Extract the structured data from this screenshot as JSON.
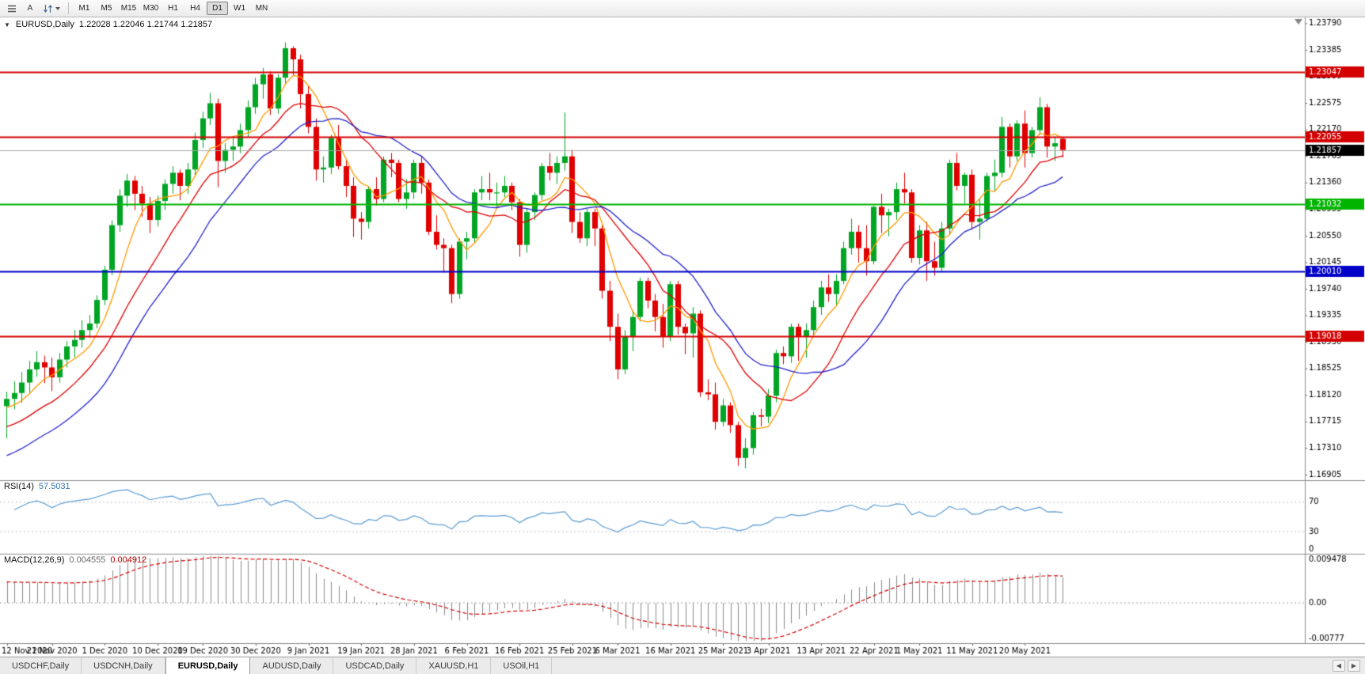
{
  "toolbar": {
    "icons": [
      "charts-list-icon",
      "annotate-a-button",
      "zoom-scale-icon",
      "dropdown-caret-icon"
    ],
    "a_button_label": "A",
    "timeframes": [
      "M1",
      "M5",
      "M15",
      "M30",
      "H1",
      "H4",
      "D1",
      "W1",
      "MN"
    ],
    "active_timeframe": "D1"
  },
  "main_chart": {
    "menu_triangle": "▼",
    "title": "EURUSD,Daily",
    "ohlc_text": "1.22028 1.22046 1.21744 1.21857",
    "price_axis": {
      "min": 1.1682,
      "max": 1.2388,
      "ticks": [
        "1.23790",
        "1.23385",
        "1.22980",
        "1.22575",
        "1.22170",
        "1.21765",
        "1.21360",
        "1.20955",
        "1.20550",
        "1.20145",
        "1.19740",
        "1.19335",
        "1.18930",
        "1.18525",
        "1.18120",
        "1.17715",
        "1.17310",
        "1.16905"
      ]
    },
    "hlines": [
      {
        "value": 1.23047,
        "label": "1.23047",
        "color": "#d40000"
      },
      {
        "value": 1.22055,
        "label": "1.22055",
        "color": "#d40000"
      },
      {
        "value": 1.21032,
        "label": "1.21032",
        "color": "#00b400"
      },
      {
        "value": 1.2001,
        "label": "1.20010",
        "color": "#0000c8"
      },
      {
        "value": 1.19018,
        "label": "1.19018",
        "color": "#d40000"
      }
    ],
    "current_price": {
      "value": 1.21857,
      "label": "1.21857",
      "bg": "#000000",
      "line_color": "#a6a6a6"
    },
    "moving_averages": [
      {
        "name": "fast-ma",
        "period": 6,
        "color": "#ff9900",
        "seed": 1.179
      },
      {
        "name": "mid-ma",
        "period": 13,
        "color": "#e00000",
        "seed": 1.176
      },
      {
        "name": "slow-ma",
        "period": 20,
        "color": "#2222cc",
        "seed": 1.1715
      }
    ],
    "candle_up": "#00a524",
    "candle_down": "#e00000",
    "shift_marker_color": "#848484"
  },
  "rsi": {
    "name": "RSI(14)",
    "value": "57.5031",
    "period": 14,
    "line_color": "#5b9bd5",
    "levels": [
      {
        "value": 70,
        "label": "70"
      },
      {
        "value": 30,
        "label": "30"
      },
      {
        "value": 0,
        "label": "0"
      }
    ]
  },
  "macd": {
    "name": "MACD(12,26,9)",
    "value_main": "0.004555",
    "value_signal": "0.004912",
    "max": 0.009478,
    "min": -0.00777,
    "tick_top": "0.009478",
    "tick_zero": "0.00",
    "tick_bottom": "-0.00777",
    "histogram_color": "#8c8c8c",
    "signal_color": "#d40000"
  },
  "date_axis": {
    "labels": [
      {
        "index": 0,
        "text": "12 Nov 2020"
      },
      {
        "index": 6,
        "text": "21 Nov 2020"
      },
      {
        "index": 13,
        "text": "1 Dec 2020"
      },
      {
        "index": 20,
        "text": "10 Dec 2020"
      },
      {
        "index": 26,
        "text": "19 Dec 2020"
      },
      {
        "index": 33,
        "text": "30 Dec 2020"
      },
      {
        "index": 40,
        "text": "9 Jan 2021"
      },
      {
        "index": 47,
        "text": "19 Jan 2021"
      },
      {
        "index": 54,
        "text": "28 Jan 2021"
      },
      {
        "index": 61,
        "text": "6 Feb 2021"
      },
      {
        "index": 68,
        "text": "16 Feb 2021"
      },
      {
        "index": 75,
        "text": "25 Feb 2021"
      },
      {
        "index": 81,
        "text": "6 Mar 2021"
      },
      {
        "index": 88,
        "text": "16 Mar 2021"
      },
      {
        "index": 95,
        "text": "25 Mar 2021"
      },
      {
        "index": 101,
        "text": "3 Apr 2021"
      },
      {
        "index": 108,
        "text": "13 Apr 2021"
      },
      {
        "index": 115,
        "text": "22 Apr 2021"
      },
      {
        "index": 121,
        "text": "1 May 2021"
      },
      {
        "index": 128,
        "text": "11 May 2021"
      },
      {
        "index": 135,
        "text": "20 May 2021"
      }
    ]
  },
  "tabs": {
    "items": [
      "USDCHF,Daily",
      "USDCNH,Daily",
      "EURUSD,Daily",
      "AUDUSD,Daily",
      "USDCAD,Daily",
      "XAUUSD,H1",
      "USOil,H1"
    ],
    "active_index": 2,
    "nav_left": "◀",
    "nav_right": "▶"
  },
  "chart_data": {
    "type": "candlestick",
    "symbol": "EURUSD",
    "timeframe": "Daily",
    "title": "EURUSD,Daily",
    "indicators": [
      "RSI(14)",
      "MACD(12,26,9)",
      "MA fast",
      "MA mid",
      "MA slow"
    ],
    "ohlc": [
      [
        1.1795,
        1.1817,
        1.1746,
        1.1806
      ],
      [
        1.1806,
        1.1833,
        1.179,
        1.1815
      ],
      [
        1.1815,
        1.1847,
        1.18,
        1.1831
      ],
      [
        1.1831,
        1.1864,
        1.1815,
        1.1851
      ],
      [
        1.1851,
        1.1879,
        1.184,
        1.1862
      ],
      [
        1.1862,
        1.1872,
        1.183,
        1.1854
      ],
      [
        1.1854,
        1.1869,
        1.1818,
        1.1839
      ],
      [
        1.1839,
        1.1876,
        1.1831,
        1.1866
      ],
      [
        1.1866,
        1.1894,
        1.1854,
        1.1886
      ],
      [
        1.1886,
        1.1911,
        1.1869,
        1.1896
      ],
      [
        1.1896,
        1.1926,
        1.1884,
        1.1911
      ],
      [
        1.1911,
        1.1934,
        1.1899,
        1.1921
      ],
      [
        1.1921,
        1.1964,
        1.1914,
        1.1957
      ],
      [
        1.1957,
        1.2009,
        1.1949,
        1.2003
      ],
      [
        1.2003,
        1.2078,
        1.1995,
        1.2071
      ],
      [
        1.2071,
        1.2126,
        1.2061,
        1.2116
      ],
      [
        1.2116,
        1.2149,
        1.2099,
        1.2139
      ],
      [
        1.2139,
        1.2146,
        1.2094,
        1.2119
      ],
      [
        1.2119,
        1.2131,
        1.2084,
        1.2104
      ],
      [
        1.2104,
        1.2114,
        1.2059,
        1.2079
      ],
      [
        1.2079,
        1.2116,
        1.2069,
        1.2108
      ],
      [
        1.2108,
        1.2141,
        1.2094,
        1.2134
      ],
      [
        1.2134,
        1.2161,
        1.2119,
        1.2151
      ],
      [
        1.2151,
        1.2156,
        1.2109,
        1.2131
      ],
      [
        1.2131,
        1.2166,
        1.2119,
        1.2156
      ],
      [
        1.2156,
        1.2212,
        1.2146,
        1.2201
      ],
      [
        1.2201,
        1.2244,
        1.2189,
        1.2234
      ],
      [
        1.2234,
        1.2273,
        1.2224,
        1.2257
      ],
      [
        1.2257,
        1.2264,
        1.2129,
        1.2169
      ],
      [
        1.2169,
        1.2196,
        1.2151,
        1.2186
      ],
      [
        1.2186,
        1.2204,
        1.2169,
        1.2191
      ],
      [
        1.2191,
        1.2226,
        1.2181,
        1.2216
      ],
      [
        1.2216,
        1.2261,
        1.2206,
        1.2251
      ],
      [
        1.2251,
        1.2296,
        1.2241,
        1.2286
      ],
      [
        1.2286,
        1.2311,
        1.2264,
        1.2301
      ],
      [
        1.2301,
        1.2306,
        1.2239,
        1.2249
      ],
      [
        1.2249,
        1.2301,
        1.2241,
        1.2296
      ],
      [
        1.2296,
        1.235,
        1.2286,
        1.2341
      ],
      [
        1.2341,
        1.2344,
        1.2299,
        1.2324
      ],
      [
        1.2324,
        1.2331,
        1.2249,
        1.2271
      ],
      [
        1.2271,
        1.2284,
        1.2211,
        1.2221
      ],
      [
        1.2221,
        1.2234,
        1.2139,
        1.2156
      ],
      [
        1.2156,
        1.2176,
        1.2136,
        1.2159
      ],
      [
        1.2159,
        1.2209,
        1.2149,
        1.2204
      ],
      [
        1.2204,
        1.2224,
        1.2156,
        1.2161
      ],
      [
        1.2161,
        1.2171,
        1.2114,
        1.2131
      ],
      [
        1.2131,
        1.2144,
        1.2053,
        1.2081
      ],
      [
        1.2081,
        1.2091,
        1.2049,
        1.2076
      ],
      [
        1.2076,
        1.2131,
        1.2066,
        1.2126
      ],
      [
        1.2126,
        1.2144,
        1.2101,
        1.2111
      ],
      [
        1.2111,
        1.2176,
        1.2106,
        1.2171
      ],
      [
        1.2171,
        1.2181,
        1.2144,
        1.2166
      ],
      [
        1.2166,
        1.2171,
        1.2106,
        1.2111
      ],
      [
        1.2111,
        1.2141,
        1.2096,
        1.2121
      ],
      [
        1.2121,
        1.2171,
        1.2111,
        1.2166
      ],
      [
        1.2166,
        1.2176,
        1.2119,
        1.2136
      ],
      [
        1.2136,
        1.2141,
        1.2056,
        1.2061
      ],
      [
        1.2061,
        1.2086,
        1.2034,
        1.2041
      ],
      [
        1.2041,
        1.2051,
        1.1999,
        1.2036
      ],
      [
        1.2036,
        1.2041,
        1.1952,
        1.1966
      ],
      [
        1.1966,
        1.2051,
        1.1959,
        1.2046
      ],
      [
        1.2046,
        1.2061,
        1.2019,
        1.2051
      ],
      [
        1.2051,
        1.2126,
        1.2044,
        1.2121
      ],
      [
        1.2121,
        1.2146,
        1.2109,
        1.2126
      ],
      [
        1.2126,
        1.2151,
        1.2109,
        1.2121
      ],
      [
        1.2121,
        1.2136,
        1.2099,
        1.2121
      ],
      [
        1.2121,
        1.2146,
        1.2114,
        1.2131
      ],
      [
        1.2131,
        1.2136,
        1.2094,
        1.2106
      ],
      [
        1.2106,
        1.2111,
        1.2023,
        1.2041
      ],
      [
        1.2041,
        1.2096,
        1.2029,
        1.2091
      ],
      [
        1.2091,
        1.2121,
        1.2079,
        1.2117
      ],
      [
        1.2117,
        1.2166,
        1.2109,
        1.2161
      ],
      [
        1.2161,
        1.2181,
        1.2139,
        1.2151
      ],
      [
        1.2151,
        1.2176,
        1.2134,
        1.2166
      ],
      [
        1.2166,
        1.2243,
        1.2154,
        1.2176
      ],
      [
        1.2176,
        1.2186,
        1.2059,
        1.2076
      ],
      [
        1.2076,
        1.2091,
        1.2044,
        1.2051
      ],
      [
        1.2051,
        1.2096,
        1.2039,
        1.2091
      ],
      [
        1.2091,
        1.2096,
        1.2039,
        1.2066
      ],
      [
        1.2066,
        1.2071,
        1.1959,
        1.1971
      ],
      [
        1.1971,
        1.1986,
        1.1894,
        1.1916
      ],
      [
        1.1916,
        1.1936,
        1.1836,
        1.1851
      ],
      [
        1.1851,
        1.1911,
        1.1844,
        1.1901
      ],
      [
        1.1901,
        1.1941,
        1.1879,
        1.1931
      ],
      [
        1.1931,
        1.1991,
        1.1924,
        1.1986
      ],
      [
        1.1986,
        1.1991,
        1.1944,
        1.1956
      ],
      [
        1.1956,
        1.1966,
        1.1909,
        1.1931
      ],
      [
        1.1931,
        1.1951,
        1.1884,
        1.1901
      ],
      [
        1.1901,
        1.1986,
        1.1894,
        1.1981
      ],
      [
        1.1981,
        1.1986,
        1.1904,
        1.1916
      ],
      [
        1.1916,
        1.1921,
        1.1874,
        1.1906
      ],
      [
        1.1906,
        1.1946,
        1.1869,
        1.1936
      ],
      [
        1.1936,
        1.1941,
        1.1809,
        1.1816
      ],
      [
        1.1816,
        1.1836,
        1.1804,
        1.1813
      ],
      [
        1.1813,
        1.1831,
        1.1759,
        1.1771
      ],
      [
        1.1771,
        1.1806,
        1.1764,
        1.1796
      ],
      [
        1.1796,
        1.1801,
        1.1754,
        1.1766
      ],
      [
        1.1766,
        1.1771,
        1.1704,
        1.1716
      ],
      [
        1.1716,
        1.1746,
        1.17,
        1.1731
      ],
      [
        1.1731,
        1.1786,
        1.1721,
        1.1781
      ],
      [
        1.1781,
        1.1791,
        1.1764,
        1.1779
      ],
      [
        1.1779,
        1.1821,
        1.1769,
        1.1811
      ],
      [
        1.1811,
        1.1881,
        1.1801,
        1.1876
      ],
      [
        1.1876,
        1.1886,
        1.1859,
        1.1871
      ],
      [
        1.1871,
        1.1921,
        1.1861,
        1.1916
      ],
      [
        1.1916,
        1.1921,
        1.1864,
        1.1901
      ],
      [
        1.1901,
        1.1921,
        1.1869,
        1.1911
      ],
      [
        1.1911,
        1.1956,
        1.1901,
        1.1946
      ],
      [
        1.1946,
        1.1986,
        1.1934,
        1.1976
      ],
      [
        1.1976,
        1.1996,
        1.1954,
        1.1966
      ],
      [
        1.1966,
        1.1996,
        1.1949,
        1.1986
      ],
      [
        1.1986,
        1.2046,
        1.1981,
        1.2036
      ],
      [
        1.2036,
        1.2081,
        1.2026,
        1.2061
      ],
      [
        1.2061,
        1.2071,
        1.2014,
        1.2036
      ],
      [
        1.2036,
        1.2071,
        1.1994,
        1.2016
      ],
      [
        1.2016,
        1.2101,
        1.2011,
        1.2099
      ],
      [
        1.2099,
        1.2119,
        1.2059,
        1.2086
      ],
      [
        1.2086,
        1.2096,
        1.2054,
        1.2091
      ],
      [
        1.2091,
        1.2136,
        1.2079,
        1.2126
      ],
      [
        1.2126,
        1.2151,
        1.2104,
        1.2121
      ],
      [
        1.2121,
        1.2126,
        1.2014,
        1.2021
      ],
      [
        1.2021,
        1.2071,
        1.2011,
        1.2063
      ],
      [
        1.2063,
        1.2076,
        1.1986,
        1.2016
      ],
      [
        1.2016,
        1.2046,
        1.1994,
        1.2006
      ],
      [
        1.2006,
        1.2076,
        1.1999,
        1.2066
      ],
      [
        1.2066,
        1.2171,
        1.2056,
        1.2166
      ],
      [
        1.2166,
        1.2181,
        1.2124,
        1.2131
      ],
      [
        1.2131,
        1.2151,
        1.2104,
        1.2148
      ],
      [
        1.2148,
        1.2156,
        1.2064,
        1.2076
      ],
      [
        1.2076,
        1.2111,
        1.2049,
        1.2081
      ],
      [
        1.2081,
        1.2151,
        1.2076,
        1.2146
      ],
      [
        1.2146,
        1.2171,
        1.2124,
        1.2151
      ],
      [
        1.2151,
        1.2236,
        1.2144,
        1.2221
      ],
      [
        1.2221,
        1.2226,
        1.2159,
        1.2176
      ],
      [
        1.2176,
        1.2231,
        1.2169,
        1.2226
      ],
      [
        1.2226,
        1.2246,
        1.2159,
        1.2181
      ],
      [
        1.2181,
        1.2221,
        1.2174,
        1.2216
      ],
      [
        1.2216,
        1.2266,
        1.2209,
        1.2251
      ],
      [
        1.2251,
        1.2256,
        1.2174,
        1.2191
      ],
      [
        1.2191,
        1.2206,
        1.2169,
        1.2196
      ],
      [
        1.22028,
        1.22046,
        1.21744,
        1.21857
      ]
    ]
  }
}
